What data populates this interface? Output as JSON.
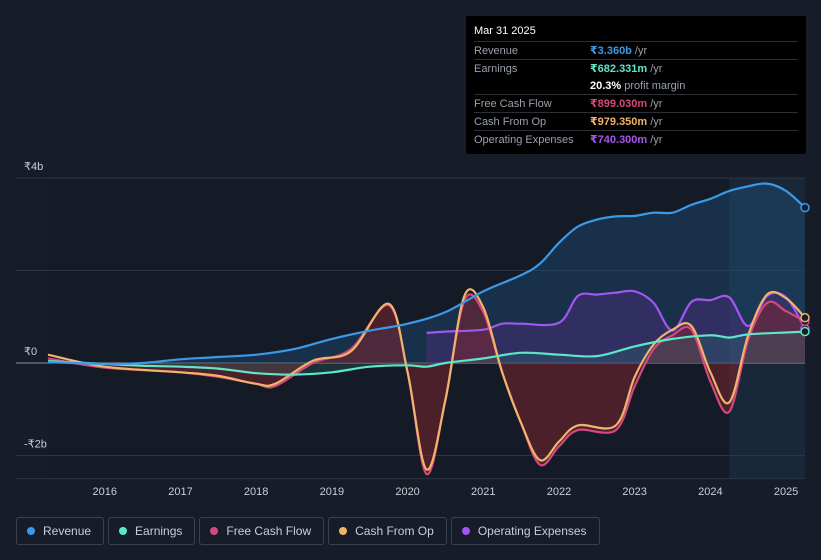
{
  "tooltip": {
    "date": "Mar 31 2025",
    "rows": [
      {
        "label": "Revenue",
        "value": "₹3.360b",
        "unit": "/yr",
        "color": "#3b9ae8"
      },
      {
        "label": "Earnings",
        "value": "₹682.331m",
        "unit": "/yr",
        "color": "#5ee6c8"
      },
      {
        "label": "",
        "value": "20.3%",
        "unit": "profit margin",
        "color": "#ffffff"
      },
      {
        "label": "Free Cash Flow",
        "value": "₹899.030m",
        "unit": "/yr",
        "color": "#d6477e"
      },
      {
        "label": "Cash From Op",
        "value": "₹979.350m",
        "unit": "/yr",
        "color": "#f0b46a"
      },
      {
        "label": "Operating Expenses",
        "value": "₹740.300m",
        "unit": "/yr",
        "color": "#a356f0"
      }
    ]
  },
  "legend": [
    {
      "label": "Revenue",
      "color": "#3b9ae8"
    },
    {
      "label": "Earnings",
      "color": "#5ee6c8"
    },
    {
      "label": "Free Cash Flow",
      "color": "#d6477e"
    },
    {
      "label": "Cash From Op",
      "color": "#f0b46a"
    },
    {
      "label": "Operating Expenses",
      "color": "#a356f0"
    }
  ],
  "chart_data": {
    "type": "area",
    "title": "",
    "y_unit": "₹b",
    "ylim": [
      -2.5,
      4.0
    ],
    "xlim": [
      2015.2,
      2025.25
    ],
    "y_tick_labels": [
      {
        "value": 4,
        "label": "₹4b"
      },
      {
        "value": 0,
        "label": "₹0"
      },
      {
        "value": -2,
        "label": "-₹2b"
      }
    ],
    "x_ticks": [
      {
        "value": 2016,
        "label": "2016"
      },
      {
        "value": 2017,
        "label": "2017"
      },
      {
        "value": 2018,
        "label": "2018"
      },
      {
        "value": 2019,
        "label": "2019"
      },
      {
        "value": 2020,
        "label": "2020"
      },
      {
        "value": 2021,
        "label": "2021"
      },
      {
        "value": 2022,
        "label": "2022"
      },
      {
        "value": 2023,
        "label": "2023"
      },
      {
        "value": 2024,
        "label": "2024"
      },
      {
        "value": 2025,
        "label": "2025"
      }
    ],
    "forecast_start": 2024.25,
    "series": [
      {
        "name": "Revenue",
        "color": "#3b9ae8",
        "points": [
          [
            2015.25,
            0.02
          ],
          [
            2016,
            -0.02
          ],
          [
            2016.5,
            0.0
          ],
          [
            2017,
            0.08
          ],
          [
            2017.5,
            0.13
          ],
          [
            2018,
            0.18
          ],
          [
            2018.5,
            0.3
          ],
          [
            2019,
            0.52
          ],
          [
            2019.5,
            0.7
          ],
          [
            2020,
            0.85
          ],
          [
            2020.5,
            1.1
          ],
          [
            2021,
            1.55
          ],
          [
            2021.5,
            1.9
          ],
          [
            2021.75,
            2.15
          ],
          [
            2022,
            2.6
          ],
          [
            2022.25,
            2.95
          ],
          [
            2022.5,
            3.1
          ],
          [
            2022.75,
            3.17
          ],
          [
            2023,
            3.18
          ],
          [
            2023.25,
            3.25
          ],
          [
            2023.5,
            3.25
          ],
          [
            2023.75,
            3.42
          ],
          [
            2024,
            3.55
          ],
          [
            2024.25,
            3.72
          ],
          [
            2024.5,
            3.82
          ],
          [
            2024.75,
            3.88
          ],
          [
            2025,
            3.72
          ],
          [
            2025.25,
            3.36
          ]
        ]
      },
      {
        "name": "Earnings",
        "color": "#5ee6c8",
        "points": [
          [
            2015.25,
            0.04
          ],
          [
            2016,
            -0.02
          ],
          [
            2016.5,
            -0.06
          ],
          [
            2017,
            -0.08
          ],
          [
            2017.5,
            -0.12
          ],
          [
            2018,
            -0.22
          ],
          [
            2018.5,
            -0.25
          ],
          [
            2019,
            -0.2
          ],
          [
            2019.5,
            -0.08
          ],
          [
            2020,
            -0.05
          ],
          [
            2020.25,
            -0.08
          ],
          [
            2020.5,
            0.0
          ],
          [
            2021,
            0.1
          ],
          [
            2021.5,
            0.22
          ],
          [
            2022,
            0.18
          ],
          [
            2022.5,
            0.15
          ],
          [
            2023,
            0.36
          ],
          [
            2023.5,
            0.52
          ],
          [
            2024,
            0.6
          ],
          [
            2024.25,
            0.55
          ],
          [
            2024.5,
            0.62
          ],
          [
            2025,
            0.66
          ],
          [
            2025.25,
            0.68
          ]
        ]
      },
      {
        "name": "Free Cash Flow",
        "color": "#d6477e",
        "points": [
          [
            2015.25,
            0.1
          ],
          [
            2016,
            -0.1
          ],
          [
            2017,
            -0.2
          ],
          [
            2017.5,
            -0.3
          ],
          [
            2018,
            -0.45
          ],
          [
            2018.25,
            -0.5
          ],
          [
            2018.75,
            0.0
          ],
          [
            2019.25,
            0.3
          ],
          [
            2019.75,
            1.25
          ],
          [
            2020,
            -0.2
          ],
          [
            2020.25,
            -2.4
          ],
          [
            2020.5,
            -0.8
          ],
          [
            2020.75,
            1.35
          ],
          [
            2021,
            1.1
          ],
          [
            2021.25,
            -0.2
          ],
          [
            2021.5,
            -1.3
          ],
          [
            2021.75,
            -2.2
          ],
          [
            2022,
            -1.8
          ],
          [
            2022.25,
            -1.45
          ],
          [
            2022.75,
            -1.45
          ],
          [
            2023,
            -0.5
          ],
          [
            2023.25,
            0.3
          ],
          [
            2023.5,
            0.6
          ],
          [
            2023.75,
            0.72
          ],
          [
            2024,
            -0.4
          ],
          [
            2024.25,
            -1.05
          ],
          [
            2024.5,
            0.5
          ],
          [
            2024.75,
            1.3
          ],
          [
            2025,
            1.12
          ],
          [
            2025.25,
            0.9
          ]
        ]
      },
      {
        "name": "Cash From Op",
        "color": "#f0b46a",
        "points": [
          [
            2015.25,
            0.18
          ],
          [
            2016,
            -0.08
          ],
          [
            2017,
            -0.2
          ],
          [
            2017.5,
            -0.28
          ],
          [
            2018,
            -0.45
          ],
          [
            2018.25,
            -0.45
          ],
          [
            2018.75,
            0.05
          ],
          [
            2019.25,
            0.25
          ],
          [
            2019.75,
            1.28
          ],
          [
            2020,
            -0.2
          ],
          [
            2020.25,
            -2.3
          ],
          [
            2020.5,
            -0.8
          ],
          [
            2020.75,
            1.45
          ],
          [
            2021,
            1.2
          ],
          [
            2021.25,
            -0.2
          ],
          [
            2021.5,
            -1.3
          ],
          [
            2021.75,
            -2.1
          ],
          [
            2022,
            -1.7
          ],
          [
            2022.25,
            -1.35
          ],
          [
            2022.75,
            -1.35
          ],
          [
            2023,
            -0.3
          ],
          [
            2023.25,
            0.4
          ],
          [
            2023.5,
            0.72
          ],
          [
            2023.75,
            0.8
          ],
          [
            2024,
            -0.2
          ],
          [
            2024.25,
            -0.85
          ],
          [
            2024.5,
            0.6
          ],
          [
            2024.75,
            1.48
          ],
          [
            2025,
            1.4
          ],
          [
            2025.25,
            0.98
          ]
        ]
      },
      {
        "name": "Operating Expenses",
        "color": "#a356f0",
        "points": [
          [
            2020.25,
            0.65
          ],
          [
            2020.5,
            0.68
          ],
          [
            2021,
            0.72
          ],
          [
            2021.25,
            0.85
          ],
          [
            2021.5,
            0.85
          ],
          [
            2022,
            0.87
          ],
          [
            2022.25,
            1.45
          ],
          [
            2022.5,
            1.48
          ],
          [
            2022.75,
            1.52
          ],
          [
            2023,
            1.55
          ],
          [
            2023.25,
            1.3
          ],
          [
            2023.5,
            0.7
          ],
          [
            2023.75,
            1.32
          ],
          [
            2024,
            1.36
          ],
          [
            2024.25,
            1.42
          ],
          [
            2024.5,
            0.8
          ],
          [
            2024.75,
            1.45
          ],
          [
            2025,
            1.42
          ],
          [
            2025.25,
            0.74
          ]
        ]
      }
    ]
  }
}
